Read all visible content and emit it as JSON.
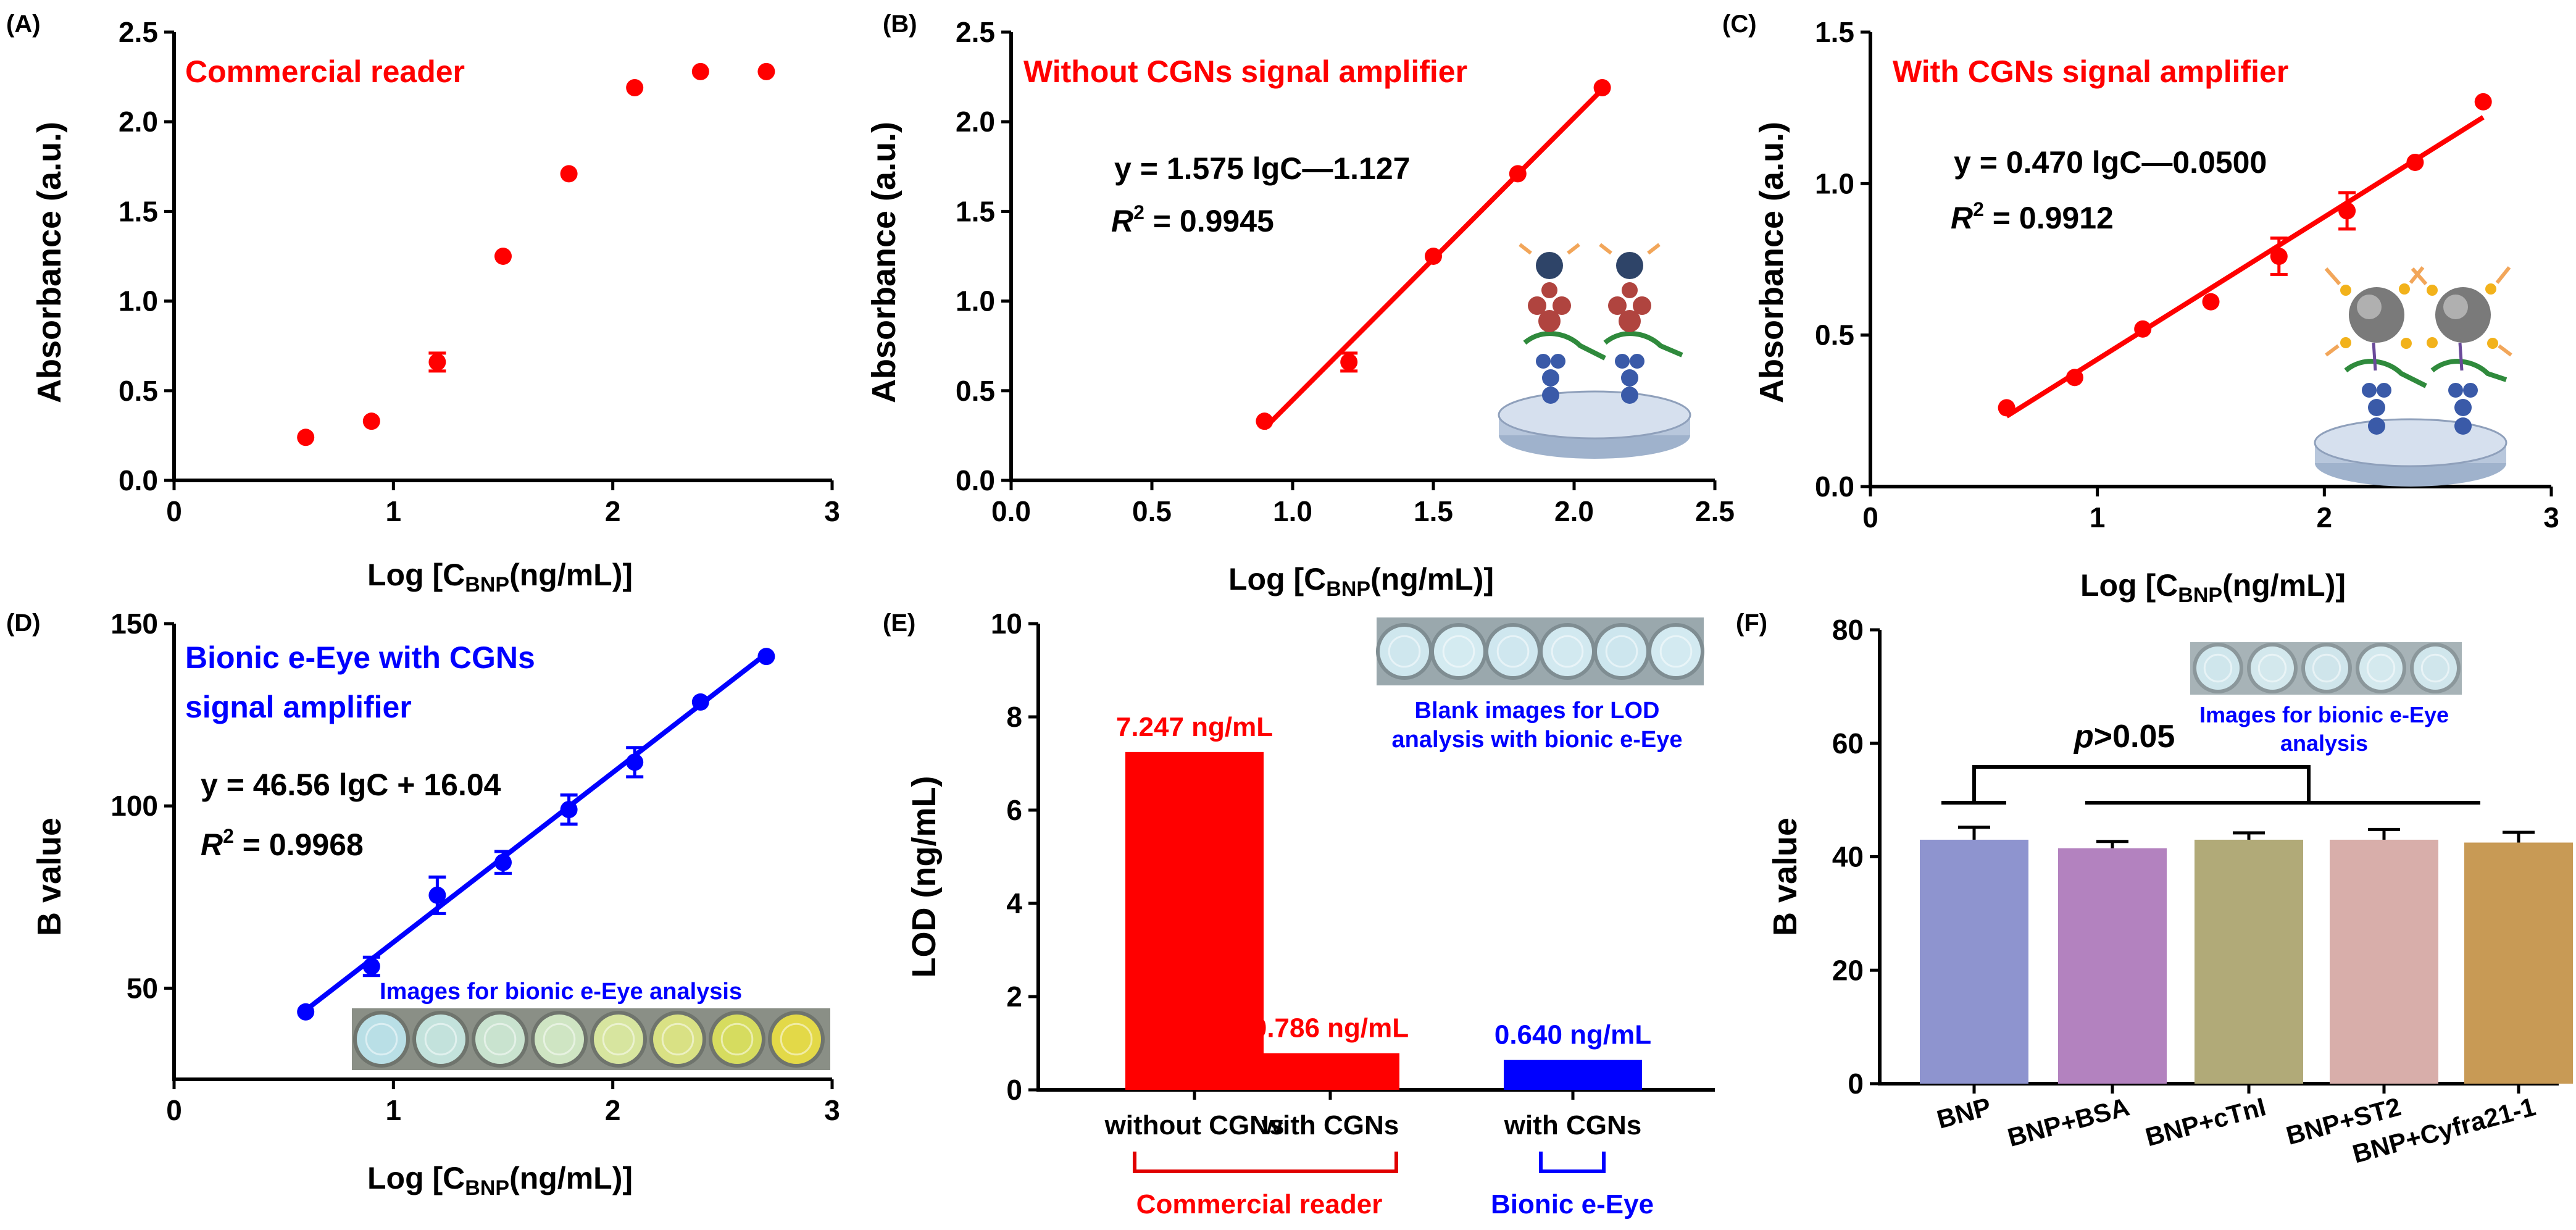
{
  "colors": {
    "red": "#ff0000",
    "blue": "#0000ff",
    "dark_red": "#e00000",
    "axis": "#000000"
  },
  "panels": [
    {
      "label": "(A)",
      "legend_text": "Commercial reader",
      "ylabel": "Absorbance (a.u.)",
      "xlabel_prefix": "Log [C",
      "xlabel_sub": "BNP",
      "xlabel_suffix": "(ng/mL)]",
      "xticks": [
        "0",
        "1",
        "2",
        "3"
      ],
      "yticks": [
        "0.0",
        "0.5",
        "1.0",
        "1.5",
        "2.0",
        "2.5"
      ]
    },
    {
      "label": "(B)",
      "legend_text": "Without CGNs signal amplifier",
      "equation": "y = 1.575 lgC—1.127",
      "r2_prefix": "R",
      "r2_sup": "2",
      "r2_value": " = 0.9945",
      "ylabel": "Absorbance (a.u.)",
      "xlabel_prefix": "Log [C",
      "xlabel_sub": "BNP",
      "xlabel_suffix": "(ng/mL)]",
      "xticks": [
        "0.0",
        "0.5",
        "1.0",
        "1.5",
        "2.0",
        "2.5"
      ],
      "yticks": [
        "0.0",
        "0.5",
        "1.0",
        "1.5",
        "2.0",
        "2.5"
      ],
      "icon": "immunoassay-schematic-icon"
    },
    {
      "label": "(C)",
      "legend_text": "With CGNs signal amplifier",
      "equation": "y = 0.470 lgC—0.0500",
      "r2_prefix": "R",
      "r2_sup": "2",
      "r2_value": " = 0.9912",
      "ylabel": "Absorbance (a.u.)",
      "xlabel_prefix": "Log [C",
      "xlabel_sub": "BNP",
      "xlabel_suffix": "(ng/mL)]",
      "xticks": [
        "0",
        "1",
        "2",
        "3"
      ],
      "yticks": [
        "0.0",
        "0.5",
        "1.0",
        "1.5"
      ],
      "icon": "cgn-amplifier-schematic-icon"
    },
    {
      "label": "(D)",
      "legend_line1": "Bionic e-Eye with CGNs",
      "legend_line2": "signal amplifier",
      "equation": "y = 46.56 lgC + 16.04",
      "r2_prefix": "R",
      "r2_sup": "2",
      "r2_value": " = 0.9968",
      "inset_caption": "Images for bionic e-Eye analysis",
      "ylabel": "B value",
      "xlabel_prefix": "Log [C",
      "xlabel_sub": "BNP",
      "xlabel_suffix": "(ng/mL)]",
      "xticks": [
        "0",
        "1",
        "2",
        "3"
      ],
      "yticks": [
        "50",
        "100",
        "150"
      ],
      "well_colors": [
        "#b9dfe6",
        "#c3e2dc",
        "#c9e3cf",
        "#cfe5c3",
        "#d7e59f",
        "#d9e184",
        "#d6dc5f",
        "#e3d948"
      ]
    },
    {
      "label": "(E)",
      "ylabel": "LOD (ng/mL)",
      "xticks": [
        "without CGNs",
        "with CGNs",
        "with CGNs"
      ],
      "yticks": [
        "0",
        "2",
        "4",
        "6",
        "8",
        "10"
      ],
      "bar_labels": [
        "7.247 ng/mL",
        "0.786 ng/mL",
        "0.640 ng/mL"
      ],
      "group1": "Commercial reader",
      "group2": "Bionic e-Eye",
      "inset_line1": "Blank images for LOD",
      "inset_line2": "analysis with bionic e-Eye",
      "well_colors": [
        "#cfe7ee",
        "#d4ebf1",
        "#cfe7ef",
        "#d2e9f0",
        "#cde6ee",
        "#d3eaf1"
      ]
    },
    {
      "label": "(F)",
      "ylabel": "B value",
      "xticks": [
        "BNP",
        "BNP+BSA",
        "BNP+cTnI",
        "BNP+ST2",
        "BNP+Cyfra21-1"
      ],
      "yticks": [
        "0",
        "20",
        "40",
        "60",
        "80"
      ],
      "p_italic": "p",
      "p_rest": ">0.05",
      "inset_line1": "Images for bionic e-Eye",
      "inset_line2": "analysis",
      "bar_colors": [
        "#8e94cf",
        "#b382bf",
        "#b1aa78",
        "#d8aeaa",
        "#c89a55"
      ],
      "well_colors": [
        "#cfe6ec",
        "#d3e8ed",
        "#cfe5eb",
        "#d4e9ee",
        "#d0e6ec"
      ]
    }
  ],
  "chart_data": [
    {
      "type": "scatter",
      "title": "Commercial reader",
      "xlabel": "Log [CBNP(ng/mL)]",
      "ylabel": "Absorbance (a.u.)",
      "xlim": [
        0,
        3
      ],
      "ylim": [
        0,
        2.5
      ],
      "x": [
        0.6,
        0.9,
        1.2,
        1.5,
        1.8,
        2.1,
        2.4,
        2.7
      ],
      "y": [
        0.24,
        0.33,
        0.66,
        1.25,
        1.71,
        2.19,
        2.28,
        2.28
      ],
      "err": [
        0,
        0,
        0.05,
        0,
        0,
        0,
        0,
        0
      ]
    },
    {
      "type": "scatter",
      "title": "Without CGNs signal amplifier",
      "xlabel": "Log [CBNP(ng/mL)]",
      "ylabel": "Absorbance (a.u.)",
      "xlim": [
        0,
        2.5
      ],
      "ylim": [
        0,
        2.5
      ],
      "x": [
        0.9,
        1.2,
        1.5,
        1.8,
        2.1
      ],
      "y": [
        0.33,
        0.66,
        1.25,
        1.71,
        2.19
      ],
      "err": [
        0,
        0.05,
        0,
        0,
        0
      ],
      "fit": {
        "slope": 1.575,
        "intercept": -1.127,
        "r2": 0.9945
      }
    },
    {
      "type": "scatter",
      "title": "With CGNs signal amplifier",
      "xlabel": "Log [CBNP(ng/mL)]",
      "ylabel": "Absorbance (a.u.)",
      "xlim": [
        0,
        3
      ],
      "ylim": [
        0,
        1.5
      ],
      "x": [
        0.6,
        0.9,
        1.2,
        1.5,
        1.8,
        2.1,
        2.4,
        2.7
      ],
      "y": [
        0.26,
        0.36,
        0.52,
        0.61,
        0.76,
        0.91,
        1.07,
        1.27
      ],
      "err": [
        0,
        0,
        0,
        0,
        0.06,
        0.06,
        0,
        0
      ],
      "fit": {
        "slope": 0.47,
        "intercept": -0.05,
        "r2": 0.9912
      }
    },
    {
      "type": "scatter",
      "title": "Bionic e-Eye with CGNs signal amplifier",
      "xlabel": "Log [CBNP(ng/mL)]",
      "ylabel": "B value",
      "xlim": [
        0,
        3
      ],
      "ylim": [
        25,
        150
      ],
      "x": [
        0.6,
        0.9,
        1.2,
        1.5,
        1.8,
        2.1,
        2.4,
        2.7
      ],
      "y": [
        43.5,
        56,
        75.5,
        84.5,
        99,
        112,
        128.5,
        141
      ],
      "err": [
        0,
        2.5,
        5,
        3,
        4,
        4,
        0,
        0
      ],
      "fit": {
        "slope": 46.56,
        "intercept": 16.04,
        "r2": 0.9968
      }
    },
    {
      "type": "bar",
      "ylabel": "LOD (ng/mL)",
      "categories": [
        "without CGNs",
        "with CGNs",
        "with CGNs"
      ],
      "groups": [
        "Commercial reader",
        "Commercial reader",
        "Bionic e-Eye"
      ],
      "values": [
        7.247,
        0.786,
        0.64
      ],
      "ylim": [
        0,
        10
      ]
    },
    {
      "type": "bar",
      "ylabel": "B value",
      "categories": [
        "BNP",
        "BNP+BSA",
        "BNP+cTnI",
        "BNP+ST2",
        "BNP+Cyfra21-1"
      ],
      "values": [
        43,
        41.5,
        43,
        43,
        42.5
      ],
      "err": [
        2.2,
        1.2,
        1.2,
        1.8,
        1.8
      ],
      "ylim": [
        0,
        80
      ],
      "annotation": "p>0.05"
    }
  ]
}
